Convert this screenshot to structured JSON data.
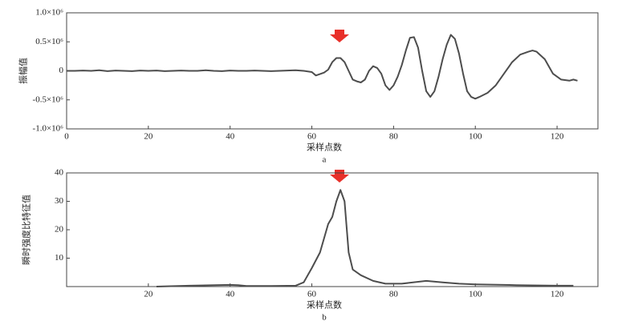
{
  "chart_data": [
    {
      "type": "line",
      "y_label": "振幅值",
      "x_label": "采样点数",
      "caption": "a",
      "xlim": [
        0,
        130
      ],
      "xticks": [
        0,
        20,
        40,
        60,
        80,
        100,
        120
      ],
      "ylim": [
        -1000000,
        1000000
      ],
      "yticks": [
        {
          "value": -1000000,
          "label": "-1.0×10⁶"
        },
        {
          "value": -500000,
          "label": "-0.5×10⁶"
        },
        0,
        {
          "value": 500000,
          "label": "0.5×10⁶"
        },
        {
          "value": 1000000,
          "label": "1.0×10⁶"
        }
      ],
      "x": [
        0,
        2,
        4,
        6,
        8,
        10,
        12,
        14,
        16,
        18,
        20,
        22,
        24,
        26,
        28,
        30,
        32,
        34,
        36,
        38,
        40,
        42,
        44,
        46,
        48,
        50,
        52,
        54,
        56,
        58,
        60,
        61,
        63,
        64,
        65,
        66,
        67,
        68,
        69,
        70,
        71,
        72,
        73,
        74,
        75,
        76,
        77,
        78,
        79,
        80,
        81,
        82,
        83,
        84,
        85,
        86,
        87,
        88,
        89,
        90,
        91,
        92,
        93,
        94,
        95,
        96,
        97,
        98,
        99,
        100,
        101,
        103,
        105,
        107,
        109,
        111,
        113,
        114,
        115,
        117,
        119,
        121,
        123,
        124,
        125
      ],
      "series": [
        {
          "name": "振幅值",
          "color": "#4d4d4d",
          "values": [
            0,
            0,
            5000,
            0,
            10000,
            -5000,
            5000,
            0,
            -5000,
            5000,
            0,
            5000,
            -5000,
            0,
            5000,
            0,
            0,
            10000,
            0,
            -5000,
            5000,
            0,
            0,
            5000,
            0,
            -5000,
            0,
            5000,
            10000,
            0,
            -20000,
            -80000,
            -30000,
            20000,
            150000,
            220000,
            220000,
            150000,
            0,
            -150000,
            -180000,
            -200000,
            -150000,
            0,
            80000,
            50000,
            -50000,
            -250000,
            -330000,
            -250000,
            -100000,
            100000,
            350000,
            570000,
            580000,
            400000,
            0,
            -350000,
            -450000,
            -350000,
            -100000,
            200000,
            450000,
            620000,
            550000,
            300000,
            -50000,
            -350000,
            -450000,
            -480000,
            -450000,
            -380000,
            -250000,
            -50000,
            150000,
            280000,
            330000,
            350000,
            330000,
            200000,
            -50000,
            -150000,
            -170000,
            -150000,
            -170000
          ]
        }
      ]
    },
    {
      "type": "line",
      "y_label": "瞬时强度比特征值",
      "x_label": "采样点数",
      "caption": "b",
      "xlim": [
        0,
        130
      ],
      "xticks": [
        20,
        40,
        60,
        80,
        100,
        120
      ],
      "ylim": [
        0,
        40
      ],
      "yticks": [
        10,
        20,
        30,
        40
      ],
      "x": [
        22,
        30,
        40,
        42,
        44,
        50,
        56,
        58,
        60,
        62,
        64,
        65,
        66,
        67,
        68,
        69,
        70,
        72,
        75,
        78,
        82,
        88,
        92,
        96,
        100,
        110,
        120,
        124
      ],
      "series": [
        {
          "name": "瞬时强度比特征值",
          "color": "#4d4d4d",
          "values": [
            0,
            0.3,
            0.6,
            0.5,
            0.2,
            0.2,
            0.3,
            1.5,
            6.5,
            12,
            22,
            24.5,
            30,
            34,
            30,
            12,
            6,
            4,
            2,
            1,
            1,
            2,
            1.5,
            1,
            0.8,
            0.5,
            0.3,
            0.3
          ]
        }
      ]
    }
  ]
}
